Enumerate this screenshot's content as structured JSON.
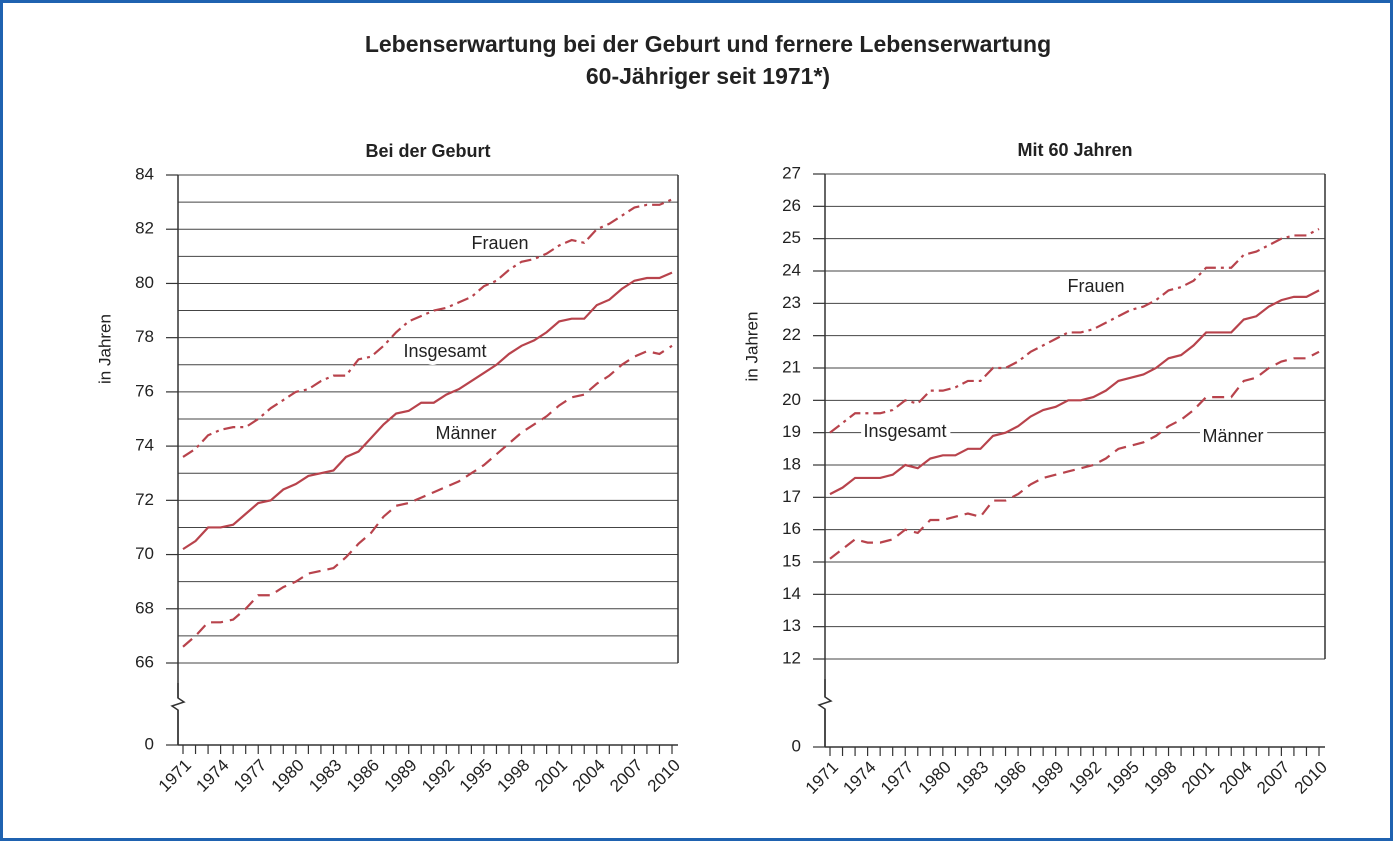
{
  "title": [
    "Lebenserwartung bei der Geburt und fernere Lebenserwartung",
    "60-Jähriger seit 1971*)"
  ],
  "chart_data": [
    {
      "type": "line",
      "title": "Bei der Geburt",
      "ylabel": "in Jahren",
      "x": [
        1971,
        1972,
        1973,
        1974,
        1975,
        1976,
        1977,
        1978,
        1979,
        1980,
        1981,
        1982,
        1983,
        1984,
        1985,
        1986,
        1987,
        1988,
        1989,
        1990,
        1991,
        1992,
        1993,
        1994,
        1995,
        1996,
        1997,
        1998,
        1999,
        2000,
        2001,
        2002,
        2003,
        2004,
        2005,
        2006,
        2007,
        2008,
        2009,
        2010
      ],
      "xlim": [
        1971,
        2010
      ],
      "xticks": [
        1971,
        1974,
        1977,
        1980,
        1983,
        1986,
        1989,
        1992,
        1995,
        1998,
        2001,
        2004,
        2007,
        2010
      ],
      "ylim": [
        0,
        84
      ],
      "yticks": [
        0,
        66,
        68,
        70,
        72,
        74,
        76,
        78,
        80,
        82,
        84
      ],
      "minor_yticks": [
        67,
        69,
        71,
        73,
        75,
        77,
        79,
        81,
        83
      ],
      "axis_break": true,
      "grid": true,
      "series": [
        {
          "name": "Frauen",
          "color": "#b8434c",
          "dash": "dashdot",
          "values": [
            73.6,
            73.9,
            74.4,
            74.6,
            74.7,
            74.7,
            75.0,
            75.4,
            75.7,
            76.0,
            76.1,
            76.4,
            76.6,
            76.6,
            77.2,
            77.3,
            77.7,
            78.2,
            78.6,
            78.8,
            79.0,
            79.1,
            79.3,
            79.5,
            79.9,
            80.1,
            80.5,
            80.8,
            80.9,
            81.1,
            81.4,
            81.6,
            81.5,
            82.0,
            82.2,
            82.5,
            82.8,
            82.9,
            82.9,
            83.1
          ]
        },
        {
          "name": "Insgesamt",
          "color": "#b8434c",
          "dash": "solid",
          "values": [
            70.2,
            70.5,
            71.0,
            71.0,
            71.1,
            71.5,
            71.9,
            72.0,
            72.4,
            72.6,
            72.9,
            73.0,
            73.1,
            73.6,
            73.8,
            74.3,
            74.8,
            75.2,
            75.3,
            75.6,
            75.6,
            75.9,
            76.1,
            76.4,
            76.7,
            77.0,
            77.4,
            77.7,
            77.9,
            78.2,
            78.6,
            78.7,
            78.7,
            79.2,
            79.4,
            79.8,
            80.1,
            80.2,
            80.2,
            80.4
          ]
        },
        {
          "name": "Männer",
          "color": "#b8434c",
          "dash": "dashed",
          "values": [
            66.6,
            67.0,
            67.5,
            67.5,
            67.6,
            68.0,
            68.5,
            68.5,
            68.8,
            69.0,
            69.3,
            69.4,
            69.5,
            69.9,
            70.4,
            70.8,
            71.4,
            71.8,
            71.9,
            72.1,
            72.3,
            72.5,
            72.7,
            73.0,
            73.3,
            73.7,
            74.1,
            74.5,
            74.8,
            75.1,
            75.5,
            75.8,
            75.9,
            76.3,
            76.6,
            77.0,
            77.3,
            77.5,
            77.4,
            77.7
          ]
        }
      ]
    },
    {
      "type": "line",
      "title": "Mit 60 Jahren",
      "ylabel": "in Jahren",
      "x": [
        1971,
        1972,
        1973,
        1974,
        1975,
        1976,
        1977,
        1978,
        1979,
        1980,
        1981,
        1982,
        1983,
        1984,
        1985,
        1986,
        1987,
        1988,
        1989,
        1990,
        1991,
        1992,
        1993,
        1994,
        1995,
        1996,
        1997,
        1998,
        1999,
        2000,
        2001,
        2002,
        2003,
        2004,
        2005,
        2006,
        2007,
        2008,
        2009,
        2010
      ],
      "xlim": [
        1971,
        2010
      ],
      "xticks": [
        1971,
        1974,
        1977,
        1980,
        1983,
        1986,
        1989,
        1992,
        1995,
        1998,
        2001,
        2004,
        2007,
        2010
      ],
      "ylim": [
        0,
        27
      ],
      "yticks": [
        0,
        12,
        13,
        14,
        15,
        16,
        17,
        18,
        19,
        20,
        21,
        22,
        23,
        24,
        25,
        26,
        27
      ],
      "axis_break": true,
      "grid": true,
      "series": [
        {
          "name": "Frauen",
          "color": "#b8434c",
          "dash": "dashdot",
          "values": [
            19.0,
            19.3,
            19.6,
            19.6,
            19.6,
            19.7,
            20.0,
            19.9,
            20.3,
            20.3,
            20.4,
            20.6,
            20.6,
            21.0,
            21.0,
            21.2,
            21.5,
            21.7,
            21.9,
            22.1,
            22.1,
            22.2,
            22.4,
            22.6,
            22.8,
            22.9,
            23.1,
            23.4,
            23.5,
            23.7,
            24.1,
            24.1,
            24.1,
            24.5,
            24.6,
            24.8,
            25.0,
            25.1,
            25.1,
            25.3
          ]
        },
        {
          "name": "Insgesamt",
          "color": "#b8434c",
          "dash": "solid",
          "values": [
            17.1,
            17.3,
            17.6,
            17.6,
            17.6,
            17.7,
            18.0,
            17.9,
            18.2,
            18.3,
            18.3,
            18.5,
            18.5,
            18.9,
            19.0,
            19.2,
            19.5,
            19.7,
            19.8,
            20.0,
            20.0,
            20.1,
            20.3,
            20.6,
            20.7,
            20.8,
            21.0,
            21.3,
            21.4,
            21.7,
            22.1,
            22.1,
            22.1,
            22.5,
            22.6,
            22.9,
            23.1,
            23.2,
            23.2,
            23.4
          ]
        },
        {
          "name": "Männer",
          "color": "#b8434c",
          "dash": "dashed",
          "values": [
            15.1,
            15.4,
            15.7,
            15.6,
            15.6,
            15.7,
            16.0,
            15.9,
            16.3,
            16.3,
            16.4,
            16.5,
            16.4,
            16.9,
            16.9,
            17.1,
            17.4,
            17.6,
            17.7,
            17.8,
            17.9,
            18.0,
            18.2,
            18.5,
            18.6,
            18.7,
            18.9,
            19.2,
            19.4,
            19.7,
            20.1,
            20.1,
            20.1,
            20.6,
            20.7,
            21.0,
            21.2,
            21.3,
            21.3,
            21.5
          ]
        }
      ]
    }
  ]
}
